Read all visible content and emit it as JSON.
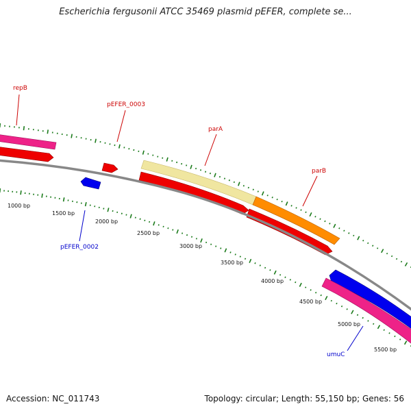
{
  "title": "Escherichia fergusonii ATCC 35469 plasmid pEFER, complete se...",
  "footer": {
    "accession": "Accession: NC_011743",
    "summary": "Topology: circular; Length: 55,150 bp; Genes: 56"
  },
  "scale": {
    "labels": [
      "1000 bp",
      "1500 bp",
      "2000 bp",
      "2500 bp",
      "3000 bp",
      "3500 bp",
      "4000 bp",
      "4500 bp",
      "5000 bp",
      "5500 bp"
    ]
  },
  "gene_labels": [
    {
      "name": "repB",
      "strand": "forward"
    },
    {
      "name": "pEFER_0003",
      "strand": "forward"
    },
    {
      "name": "parA",
      "strand": "forward"
    },
    {
      "name": "parB",
      "strand": "forward"
    },
    {
      "name": "pEFER_0002",
      "strand": "reverse"
    },
    {
      "name": "umuC",
      "strand": "reverse"
    }
  ],
  "colors": {
    "forward_label": "#cc0000",
    "reverse_label": "#0000cc",
    "backbone": "#888888",
    "tick": "#1a7a1a",
    "cds_red": "#ee0000",
    "cds_blue": "#0000ee",
    "gene_pink": "#ee2288",
    "gene_yellow": "#f0e6a0",
    "gene_orange": "#ff8c00"
  }
}
